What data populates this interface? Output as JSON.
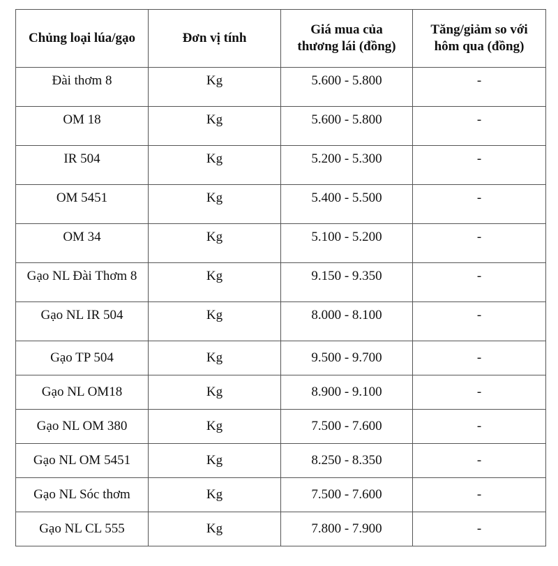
{
  "table": {
    "headers": [
      "Chủng loại lúa/gạo",
      "Đơn vị tính",
      "Giá mua của thương lái (đồng)",
      "Tăng/giảm so với hôm qua (đồng)"
    ],
    "rows": [
      [
        "Đài thơm 8",
        "Kg",
        "5.600 - 5.800",
        "-"
      ],
      [
        "OM 18",
        "Kg",
        "5.600 - 5.800",
        "-"
      ],
      [
        "IR 504",
        "Kg",
        "5.200 - 5.300",
        "-"
      ],
      [
        "OM 5451",
        "Kg",
        "5.400 - 5.500",
        "-"
      ],
      [
        "OM 34",
        "Kg",
        "5.100 - 5.200",
        "-"
      ],
      [
        "Gạo NL Đài Thơm 8",
        "Kg",
        "9.150 - 9.350",
        "-"
      ],
      [
        "Gạo NL IR 504",
        "Kg",
        "8.000 - 8.100",
        "-"
      ],
      [
        "Gạo TP 504",
        "Kg",
        "9.500 - 9.700",
        "-"
      ],
      [
        "Gạo NL OM18",
        "Kg",
        "8.900 - 9.100",
        "-"
      ],
      [
        "Gạo NL OM 380",
        "Kg",
        "7.500 - 7.600",
        "-"
      ],
      [
        "Gạo NL OM 5451",
        "Kg",
        "8.250 - 8.350",
        "-"
      ],
      [
        "Gạo NL Sóc thơm",
        "Kg",
        "7.500 - 7.600",
        "-"
      ],
      [
        "Gạo NL CL 555",
        "Kg",
        "7.800 - 7.900",
        "-"
      ]
    ]
  }
}
